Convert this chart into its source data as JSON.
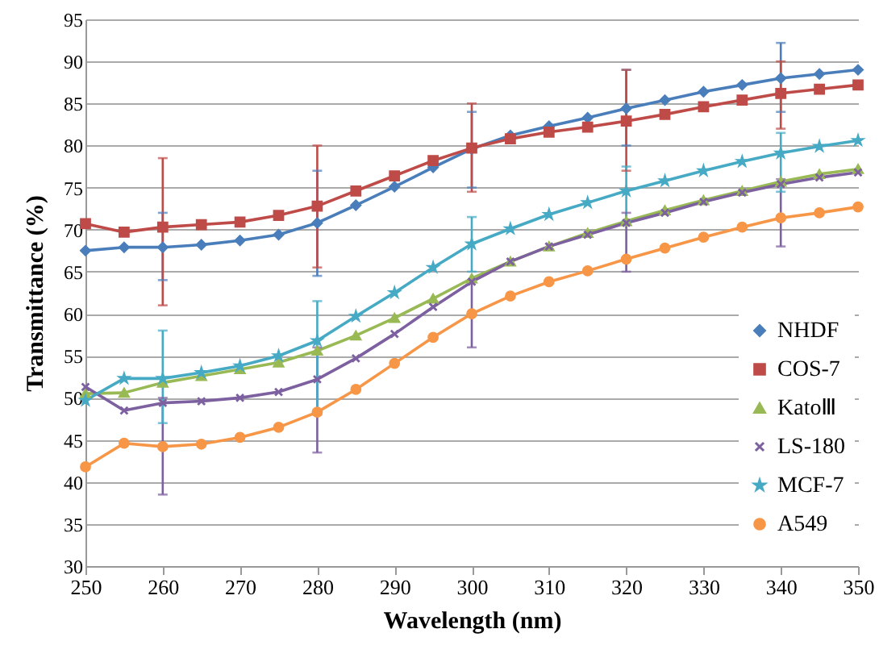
{
  "chart_data": {
    "type": "line",
    "xlabel": "Wavelength  (nm)",
    "ylabel": "Transmittance  (%)",
    "x": [
      250,
      255,
      260,
      265,
      270,
      275,
      280,
      285,
      290,
      295,
      300,
      305,
      310,
      315,
      320,
      325,
      330,
      335,
      340,
      345,
      350
    ],
    "xlim": [
      250,
      350
    ],
    "xticks": [
      250,
      260,
      270,
      280,
      290,
      300,
      310,
      320,
      330,
      340,
      350
    ],
    "ylim": [
      30,
      95
    ],
    "yticks": [
      30,
      35,
      40,
      45,
      50,
      55,
      60,
      65,
      70,
      75,
      80,
      85,
      90,
      95
    ],
    "grid": "y",
    "legend": "right",
    "series": [
      {
        "name": "NHDF",
        "color": "#4a7ebb",
        "marker": "diamond",
        "values": [
          67.5,
          67.9,
          67.9,
          68.2,
          68.7,
          69.4,
          70.8,
          72.9,
          75.1,
          77.4,
          79.6,
          81.2,
          82.3,
          83.3,
          84.4,
          85.4,
          86.4,
          87.2,
          88.0,
          88.5,
          89.0
        ],
        "errors": [
          null,
          null,
          [
            64,
            72
          ],
          null,
          null,
          null,
          [
            64.5,
            77
          ],
          null,
          null,
          null,
          [
            75,
            84
          ],
          null,
          null,
          null,
          [
            80,
            89
          ],
          null,
          null,
          null,
          [
            84,
            92.2
          ],
          null,
          null
        ]
      },
      {
        "name": "COS-7",
        "color": "#be4b48",
        "marker": "square",
        "values": [
          70.7,
          69.7,
          70.3,
          70.6,
          70.9,
          71.7,
          72.8,
          74.6,
          76.4,
          78.2,
          79.7,
          80.8,
          81.6,
          82.2,
          82.9,
          83.7,
          84.6,
          85.4,
          86.2,
          86.7,
          87.2
        ],
        "errors": [
          null,
          null,
          [
            61,
            78.5
          ],
          null,
          null,
          null,
          [
            65.5,
            80
          ],
          null,
          null,
          null,
          [
            74.5,
            85
          ],
          null,
          null,
          null,
          [
            77,
            89
          ],
          null,
          null,
          null,
          [
            82,
            90
          ],
          null,
          null
        ]
      },
      {
        "name": "KatoⅢ",
        "color": "#98b954",
        "marker": "triangle",
        "values": [
          50.5,
          50.6,
          51.8,
          52.6,
          53.4,
          54.2,
          55.6,
          57.4,
          59.5,
          61.8,
          64.2,
          66.2,
          68.0,
          69.6,
          71.0,
          72.3,
          73.5,
          74.6,
          75.7,
          76.6,
          77.2
        ]
      },
      {
        "name": "LS-180",
        "color": "#7d60a0",
        "marker": "cross",
        "values": [
          51.3,
          48.5,
          49.4,
          49.6,
          50.0,
          50.7,
          52.2,
          54.7,
          57.6,
          60.8,
          63.8,
          66.2,
          68.0,
          69.4,
          70.8,
          72.0,
          73.3,
          74.4,
          75.4,
          76.2,
          76.8
        ],
        "errors": [
          null,
          null,
          [
            38.5,
            50
          ],
          null,
          null,
          null,
          [
            43.5,
            56
          ],
          null,
          null,
          null,
          [
            56,
            64
          ],
          null,
          null,
          null,
          [
            65,
            72
          ],
          null,
          null,
          null,
          [
            68,
            76
          ],
          null,
          null
        ]
      },
      {
        "name": "MCF-7",
        "color": "#46aac5",
        "marker": "star",
        "values": [
          49.7,
          52.3,
          52.3,
          53.0,
          53.8,
          55.0,
          56.8,
          59.7,
          62.5,
          65.5,
          68.3,
          70.1,
          71.8,
          73.2,
          74.6,
          75.8,
          77.0,
          78.1,
          79.1,
          79.9,
          80.6
        ],
        "errors": [
          null,
          null,
          [
            47,
            58
          ],
          null,
          null,
          null,
          [
            48,
            61.5
          ],
          null,
          null,
          null,
          [
            65,
            71.5
          ],
          null,
          null,
          null,
          [
            71,
            77.5
          ],
          null,
          null,
          null,
          [
            74.5,
            81.5
          ],
          null,
          null
        ]
      },
      {
        "name": "A549",
        "color": "#f79646",
        "marker": "circle",
        "values": [
          41.8,
          44.6,
          44.2,
          44.5,
          45.3,
          46.5,
          48.3,
          51.0,
          54.1,
          57.2,
          60.0,
          62.1,
          63.8,
          65.1,
          66.5,
          67.8,
          69.1,
          70.3,
          71.4,
          72.0,
          72.7
        ]
      }
    ]
  }
}
